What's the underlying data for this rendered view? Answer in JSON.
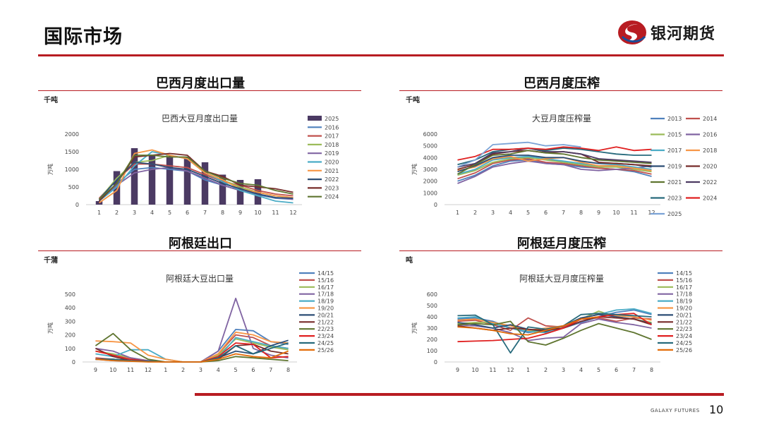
{
  "page": {
    "title": "国际市场",
    "logo_text": "银河期货",
    "footer_brand": "GALAXY FUTURES",
    "page_number": "10",
    "brand_color": "#b81c22"
  },
  "sections": [
    {
      "title": "巴西月度出口量",
      "unit": "千吨"
    },
    {
      "title": "巴西月度压榨",
      "unit": "千吨"
    },
    {
      "title": "阿根廷出口",
      "unit": "千蒲"
    },
    {
      "title": "阿根廷月度压榨",
      "unit": "吨"
    }
  ],
  "chart_data": [
    {
      "type": "bar+line",
      "title": "巴西大豆月度出口量",
      "ylabel": "万吨",
      "xlabel": "",
      "ylim": [
        0,
        2000
      ],
      "yticks": [
        0,
        500,
        1000,
        1500,
        2000
      ],
      "categories": [
        "1",
        "2",
        "3",
        "4",
        "5",
        "6",
        "7",
        "8",
        "9",
        "10",
        "11",
        "12"
      ],
      "legend_placement": "right",
      "bar_series": {
        "name": "2025",
        "color": "#4b3a63",
        "values": [
          100,
          950,
          1600,
          1420,
          1400,
          1350,
          1200,
          850,
          700,
          720,
          null,
          null
        ]
      },
      "series": [
        {
          "name": "2016",
          "color": "#4f81bd",
          "values": [
            120,
            600,
            1000,
            1050,
            1000,
            950,
            700,
            550,
            400,
            280,
            180,
            150
          ]
        },
        {
          "name": "2017",
          "color": "#c0504d",
          "values": [
            180,
            700,
            1150,
            1150,
            1100,
            1050,
            850,
            650,
            550,
            400,
            300,
            250
          ]
        },
        {
          "name": "2018",
          "color": "#9bbb59",
          "values": [
            150,
            750,
            1200,
            1250,
            1400,
            1300,
            900,
            700,
            500,
            350,
            250,
            200
          ]
        },
        {
          "name": "2019",
          "color": "#8064a2",
          "values": [
            130,
            550,
            900,
            1000,
            1050,
            950,
            750,
            550,
            400,
            300,
            200,
            150
          ]
        },
        {
          "name": "2020",
          "color": "#4bacc6",
          "values": [
            100,
            500,
            1100,
            1500,
            1400,
            1300,
            900,
            650,
            400,
            250,
            100,
            50
          ]
        },
        {
          "name": "2021",
          "color": "#f79646",
          "values": [
            50,
            400,
            1450,
            1550,
            1400,
            1300,
            900,
            700,
            450,
            350,
            250,
            200
          ]
        },
        {
          "name": "2022",
          "color": "#2c4d75",
          "values": [
            150,
            700,
            1200,
            1150,
            1050,
            1000,
            800,
            600,
            450,
            300,
            200,
            180
          ]
        },
        {
          "name": "2023",
          "color": "#772c2a",
          "values": [
            100,
            600,
            1350,
            1400,
            1450,
            1400,
            950,
            800,
            550,
            500,
            450,
            350
          ]
        },
        {
          "name": "2024",
          "color": "#5f7530",
          "values": [
            150,
            600,
            1400,
            1400,
            1350,
            1350,
            950,
            750,
            600,
            550,
            400,
            300
          ]
        }
      ]
    },
    {
      "type": "line",
      "title": "大豆月度压榨量",
      "ylabel": "万吨",
      "xlabel": "",
      "ylim": [
        0,
        6000
      ],
      "yticks": [
        0,
        1000,
        2000,
        3000,
        4000,
        5000,
        6000
      ],
      "categories": [
        "1",
        "2",
        "3",
        "4",
        "5",
        "6",
        "7",
        "8",
        "9",
        "10",
        "11",
        "12"
      ],
      "legend_placement": "right",
      "series": [
        {
          "name": "2013",
          "color": "#4f81bd",
          "values": [
            2000,
            2500,
            3300,
            3700,
            3800,
            3500,
            3400,
            3200,
            3100,
            3000,
            2800,
            2400
          ]
        },
        {
          "name": "2014",
          "color": "#c0504d",
          "values": [
            2200,
            2700,
            3500,
            3800,
            3900,
            3600,
            3500,
            3300,
            3100,
            3000,
            2900,
            2600
          ]
        },
        {
          "name": "2015",
          "color": "#9bbb59",
          "values": [
            2500,
            2900,
            3600,
            3900,
            4000,
            3800,
            3600,
            3400,
            3200,
            3200,
            3000,
            2800
          ]
        },
        {
          "name": "2016",
          "color": "#8064a2",
          "values": [
            1800,
            2400,
            3200,
            3500,
            3700,
            3500,
            3400,
            3000,
            2900,
            3000,
            3100,
            3300
          ]
        },
        {
          "name": "2017",
          "color": "#4bacc6",
          "values": [
            2600,
            3000,
            3800,
            4000,
            4100,
            3900,
            3700,
            3500,
            3300,
            3400,
            3200,
            3000
          ]
        },
        {
          "name": "2018",
          "color": "#f79646",
          "values": [
            2900,
            3200,
            3900,
            4100,
            3700,
            3900,
            4000,
            3600,
            3300,
            3300,
            3100,
            2900
          ]
        },
        {
          "name": "2019",
          "color": "#2c4d75",
          "values": [
            2800,
            3300,
            4000,
            4200,
            4200,
            4000,
            4000,
            3700,
            3500,
            3500,
            3400,
            3200
          ]
        },
        {
          "name": "2020",
          "color": "#772c2a",
          "values": [
            3000,
            3400,
            4300,
            4500,
            4600,
            4400,
            4500,
            4300,
            3600,
            3500,
            3400,
            3300
          ]
        },
        {
          "name": "2021",
          "color": "#5f7530",
          "values": [
            2600,
            3400,
            4200,
            4300,
            4600,
            4400,
            4300,
            4000,
            3800,
            3700,
            3600,
            3500
          ]
        },
        {
          "name": "2022",
          "color": "#4d3b62",
          "values": [
            3200,
            3500,
            4400,
            4500,
            4800,
            4500,
            4500,
            4300,
            3900,
            3800,
            3700,
            3600
          ]
        },
        {
          "name": "2023",
          "color": "#276a7c",
          "values": [
            3400,
            3800,
            4500,
            4700,
            4800,
            4600,
            4800,
            4700,
            4500,
            4300,
            4200,
            4200
          ]
        },
        {
          "name": "2024",
          "color": "#e02020",
          "values": [
            3800,
            4100,
            4700,
            4700,
            4800,
            4700,
            4900,
            4800,
            4600,
            4900,
            4600,
            4700
          ]
        },
        {
          "name": "2025",
          "color": "#7ba3d6",
          "values": [
            3200,
            3800,
            5100,
            5200,
            5300,
            5000,
            5100,
            4900,
            null,
            null,
            null,
            null
          ]
        }
      ]
    },
    {
      "type": "line",
      "title": "阿根廷大豆出口量",
      "ylabel": "万吨",
      "xlabel": "",
      "ylim": [
        0,
        500
      ],
      "yticks": [
        0,
        100,
        200,
        300,
        400,
        500
      ],
      "categories": [
        "9",
        "10",
        "11",
        "12",
        "1",
        "2",
        "3",
        "4",
        "5",
        "6",
        "7",
        "8"
      ],
      "legend_placement": "right",
      "series": [
        {
          "name": "14/15",
          "color": "#4f81bd",
          "values": [
            20,
            10,
            5,
            5,
            0,
            0,
            0,
            80,
            240,
            230,
            150,
            130
          ]
        },
        {
          "name": "15/16",
          "color": "#c0504d",
          "values": [
            30,
            20,
            10,
            5,
            0,
            0,
            0,
            60,
            200,
            180,
            120,
            100
          ]
        },
        {
          "name": "16/17",
          "color": "#9bbb59",
          "values": [
            80,
            60,
            30,
            10,
            0,
            0,
            0,
            50,
            170,
            140,
            110,
            90
          ]
        },
        {
          "name": "17/18",
          "color": "#8064a2",
          "values": [
            100,
            80,
            30,
            10,
            0,
            0,
            0,
            80,
            470,
            100,
            50,
            30
          ]
        },
        {
          "name": "18/19",
          "color": "#4bacc6",
          "values": [
            60,
            40,
            90,
            90,
            20,
            0,
            0,
            30,
            180,
            150,
            120,
            100
          ]
        },
        {
          "name": "19/20",
          "color": "#f79646",
          "values": [
            155,
            150,
            140,
            50,
            20,
            0,
            0,
            60,
            220,
            200,
            150,
            140
          ]
        },
        {
          "name": "20/21",
          "color": "#2c4d75",
          "values": [
            20,
            20,
            10,
            5,
            0,
            0,
            0,
            30,
            80,
            60,
            120,
            160
          ]
        },
        {
          "name": "21/22",
          "color": "#772c2a",
          "values": [
            100,
            40,
            10,
            5,
            0,
            0,
            0,
            20,
            120,
            130,
            80,
            60
          ]
        },
        {
          "name": "22/23",
          "color": "#5f7530",
          "values": [
            120,
            210,
            90,
            20,
            0,
            0,
            0,
            10,
            40,
            30,
            20,
            10
          ]
        },
        {
          "name": "23/24",
          "color": "#e02020",
          "values": [
            80,
            50,
            20,
            5,
            0,
            0,
            0,
            40,
            140,
            130,
            30,
            40
          ]
        },
        {
          "name": "24/25",
          "color": "#276a7c",
          "values": [
            20,
            20,
            10,
            5,
            0,
            0,
            0,
            30,
            120,
            60,
            100,
            140
          ]
        },
        {
          "name": "25/26",
          "color": "#e36c09",
          "values": [
            20,
            10,
            5,
            0,
            0,
            0,
            0,
            20,
            60,
            40,
            30,
            80
          ]
        }
      ]
    },
    {
      "type": "line",
      "title": "阿根廷大豆月度压榨量",
      "ylabel": "万吨",
      "xlabel": "",
      "ylim": [
        0,
        600
      ],
      "yticks": [
        0,
        100,
        200,
        300,
        400,
        500,
        600
      ],
      "categories": [
        "9",
        "10",
        "11",
        "12",
        "1",
        "2",
        "3",
        "4",
        "5",
        "6",
        "7",
        "8"
      ],
      "legend_placement": "right",
      "series": [
        {
          "name": "14/15",
          "color": "#4f81bd",
          "values": [
            380,
            390,
            360,
            300,
            260,
            280,
            300,
            350,
            400,
            440,
            460,
            420
          ]
        },
        {
          "name": "15/16",
          "color": "#c0504d",
          "values": [
            360,
            370,
            330,
            280,
            390,
            320,
            310,
            380,
            390,
            360,
            390,
            380
          ]
        },
        {
          "name": "16/17",
          "color": "#9bbb59",
          "values": [
            340,
            350,
            350,
            320,
            280,
            260,
            300,
            380,
            450,
            400,
            380,
            350
          ]
        },
        {
          "name": "17/18",
          "color": "#8064a2",
          "values": [
            330,
            320,
            300,
            260,
            190,
            210,
            220,
            340,
            380,
            350,
            330,
            300
          ]
        },
        {
          "name": "18/19",
          "color": "#4bacc6",
          "values": [
            390,
            400,
            340,
            300,
            270,
            260,
            300,
            390,
            420,
            460,
            470,
            430
          ]
        },
        {
          "name": "19/20",
          "color": "#f79646",
          "values": [
            370,
            380,
            350,
            320,
            280,
            300,
            320,
            390,
            420,
            410,
            400,
            370
          ]
        },
        {
          "name": "20/21",
          "color": "#2c4d75",
          "values": [
            350,
            330,
            300,
            330,
            290,
            270,
            320,
            390,
            420,
            400,
            380,
            340
          ]
        },
        {
          "name": "21/22",
          "color": "#772c2a",
          "values": [
            320,
            300,
            280,
            300,
            290,
            280,
            300,
            360,
            400,
            390,
            380,
            330
          ]
        },
        {
          "name": "22/23",
          "color": "#5f7530",
          "values": [
            330,
            340,
            330,
            360,
            180,
            150,
            210,
            280,
            340,
            300,
            260,
            200
          ]
        },
        {
          "name": "23/24",
          "color": "#e02020",
          "values": [
            180,
            185,
            190,
            200,
            210,
            250,
            300,
            380,
            400,
            420,
            430,
            330
          ]
        },
        {
          "name": "24/25",
          "color": "#276a7c",
          "values": [
            410,
            415,
            330,
            80,
            310,
            290,
            320,
            420,
            430,
            420,
            410,
            400
          ]
        },
        {
          "name": "25/26",
          "color": "#e36c09",
          "values": [
            310,
            300,
            280,
            250,
            240,
            280,
            320,
            380,
            400,
            null,
            null,
            null
          ]
        }
      ]
    }
  ]
}
